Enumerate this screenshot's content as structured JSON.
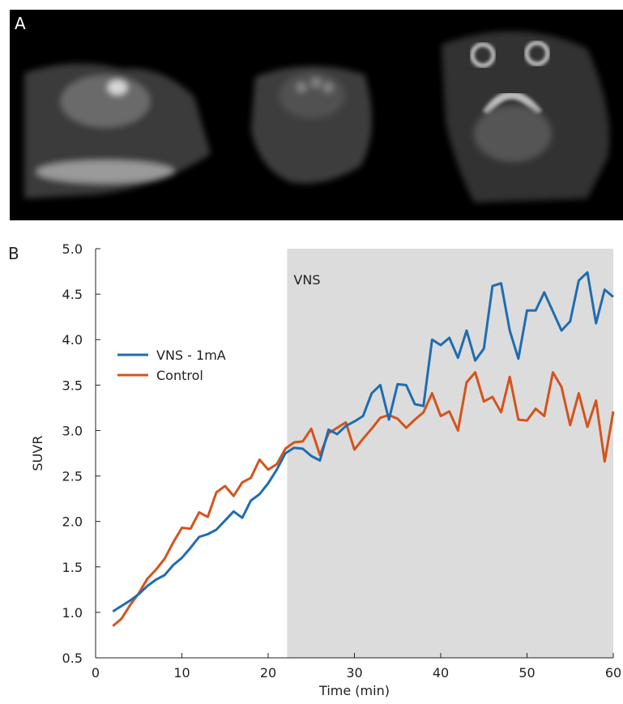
{
  "panel_labels": [
    "A",
    "B"
  ],
  "chart_data": {
    "type": "line",
    "xlabel": "Time (min)",
    "ylabel": "SUVR",
    "x": [
      2,
      3,
      4,
      5,
      6,
      7,
      8,
      9,
      10,
      11,
      12,
      13,
      14,
      15,
      16,
      17,
      18,
      19,
      20,
      21,
      22,
      23,
      24,
      25,
      26,
      27,
      28,
      29,
      30,
      31,
      32,
      33,
      34,
      35,
      36,
      37,
      38,
      39,
      40,
      41,
      42,
      43,
      44,
      45,
      46,
      47,
      48,
      49,
      50,
      51,
      52,
      53,
      54,
      55,
      56,
      57,
      58,
      59,
      60
    ],
    "series": [
      {
        "name": "VNS - 1mA",
        "color": "#1f6db0",
        "values": [
          1.01,
          1.07,
          1.13,
          1.2,
          1.29,
          1.36,
          1.41,
          1.52,
          1.6,
          1.71,
          1.83,
          1.86,
          1.91,
          2.01,
          2.11,
          2.04,
          2.23,
          2.3,
          2.42,
          2.57,
          2.75,
          2.81,
          2.8,
          2.72,
          2.67,
          3.01,
          2.96,
          3.05,
          3.1,
          3.16,
          3.41,
          3.5,
          3.12,
          3.51,
          3.5,
          3.29,
          3.27,
          4.0,
          3.94,
          4.02,
          3.8,
          4.1,
          3.77,
          3.9,
          4.59,
          4.62,
          4.1,
          3.79,
          4.32,
          4.32,
          4.52,
          4.31,
          4.1,
          4.2,
          4.65,
          4.74,
          4.18,
          4.55,
          4.47
        ]
      },
      {
        "name": "Control",
        "color": "#d4531c",
        "values": [
          0.85,
          0.93,
          1.08,
          1.21,
          1.37,
          1.47,
          1.59,
          1.77,
          1.93,
          1.92,
          2.1,
          2.05,
          2.32,
          2.39,
          2.28,
          2.43,
          2.48,
          2.68,
          2.57,
          2.63,
          2.8,
          2.87,
          2.88,
          3.02,
          2.73,
          2.97,
          3.03,
          3.09,
          2.79,
          2.91,
          3.02,
          3.14,
          3.17,
          3.13,
          3.03,
          3.12,
          3.2,
          3.41,
          3.16,
          3.21,
          3.0,
          3.53,
          3.64,
          3.32,
          3.37,
          3.2,
          3.59,
          3.12,
          3.11,
          3.24,
          3.16,
          3.64,
          3.48,
          3.06,
          3.41,
          3.04,
          3.33,
          2.66,
          3.21
        ]
      }
    ],
    "xlim": [
      0,
      60
    ],
    "xticks": [
      0,
      10,
      20,
      30,
      40,
      50,
      60
    ],
    "ylim": [
      0.5,
      5
    ],
    "yticks": [
      0.5,
      {
        "value": 1,
        "label": "1.0"
      },
      1.5,
      {
        "value": 2,
        "label": "2.0"
      },
      2.5,
      {
        "value": 3,
        "label": "3.0"
      },
      3.5,
      {
        "value": 4,
        "label": "4.0"
      },
      4.5,
      {
        "value": 5,
        "label": "5.0"
      }
    ],
    "shaded_region": {
      "x": [
        22.2,
        60
      ],
      "label": "VNS",
      "color": "#dcdcdc"
    }
  }
}
